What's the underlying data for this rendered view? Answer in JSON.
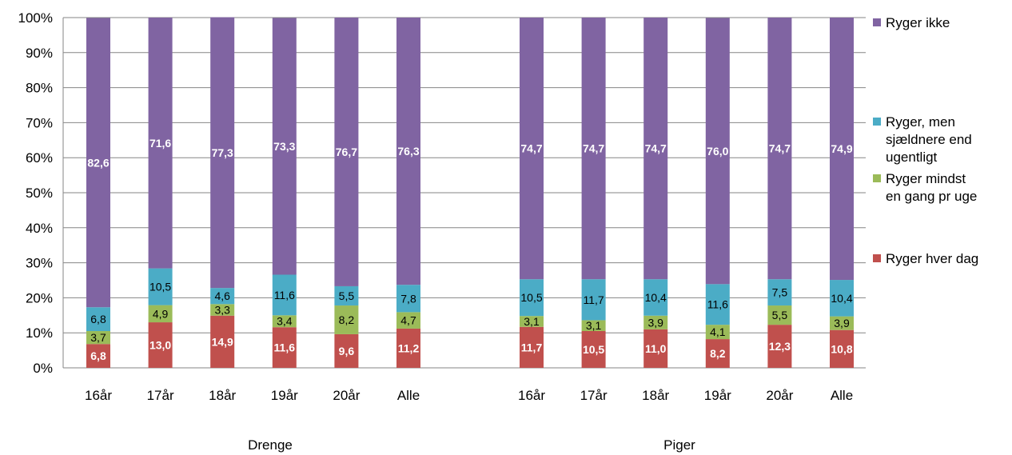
{
  "chart_data": {
    "type": "bar",
    "stacked": true,
    "y_axis": {
      "ylim": [
        0,
        100
      ],
      "ticks": [
        "0%",
        "10%",
        "20%",
        "30%",
        "40%",
        "50%",
        "60%",
        "70%",
        "80%",
        "90%",
        "100%"
      ],
      "grid": true
    },
    "legend_position": "right",
    "groups": [
      {
        "label": "Drenge",
        "categories": [
          "16år",
          "17år",
          "18år",
          "19år",
          "20år",
          "Alle"
        ],
        "series": [
          {
            "name": "Ryger hver dag",
            "values": [
              "6,8",
              "13,0",
              "14,9",
              "11,6",
              "9,6",
              "11,2"
            ]
          },
          {
            "name": "Ryger mindst en gang pr uge",
            "values": [
              "3,7",
              "4,9",
              "3,3",
              "3,4",
              "8,2",
              "4,7"
            ]
          },
          {
            "name": "Ryger, men sjældnere end ugentligt",
            "values": [
              "6,8",
              "10,5",
              "4,6",
              "11,6",
              "5,5",
              "7,8"
            ]
          },
          {
            "name": "Ryger ikke",
            "values": [
              "82,6",
              "71,6",
              "77,3",
              "73,3",
              "76,7",
              "76,3"
            ]
          }
        ]
      },
      {
        "label": "Piger",
        "categories": [
          "16år",
          "17år",
          "18år",
          "19år",
          "20år",
          "Alle"
        ],
        "series": [
          {
            "name": "Ryger hver dag",
            "values": [
              "11,7",
              "10,5",
              "11,0",
              "8,2",
              "12,3",
              "10,8"
            ]
          },
          {
            "name": "Ryger mindst en gang pr uge",
            "values": [
              "3,1",
              "3,1",
              "3,9",
              "4,1",
              "5,5",
              "3,9"
            ]
          },
          {
            "name": "Ryger, men sjældnere end ugentligt",
            "values": [
              "10,5",
              "11,7",
              "10,4",
              "11,6",
              "7,5",
              "10,4"
            ]
          },
          {
            "name": "Ryger ikke",
            "values": [
              "74,7",
              "74,7",
              "74,7",
              "76,0",
              "74,7",
              "74,9"
            ]
          }
        ]
      }
    ],
    "series_colors": [
      "#c0504d",
      "#9bbb59",
      "#4bacc6",
      "#8064a2"
    ],
    "data_label_colors": [
      "#ffffff",
      "#000000",
      "#000000",
      "#ffffff"
    ],
    "data_label_bold": [
      true,
      false,
      false,
      true
    ],
    "legend": [
      {
        "series_index": 3,
        "lines": [
          "Ryger ikke"
        ]
      },
      {
        "series_index": 2,
        "lines": [
          "Ryger, men",
          "sjældnere end",
          "ugentligt"
        ]
      },
      {
        "series_index": 1,
        "lines": [
          "Ryger mindst",
          "en gang pr uge"
        ]
      },
      {
        "series_index": 0,
        "lines": [
          "Ryger hver dag"
        ]
      }
    ]
  }
}
